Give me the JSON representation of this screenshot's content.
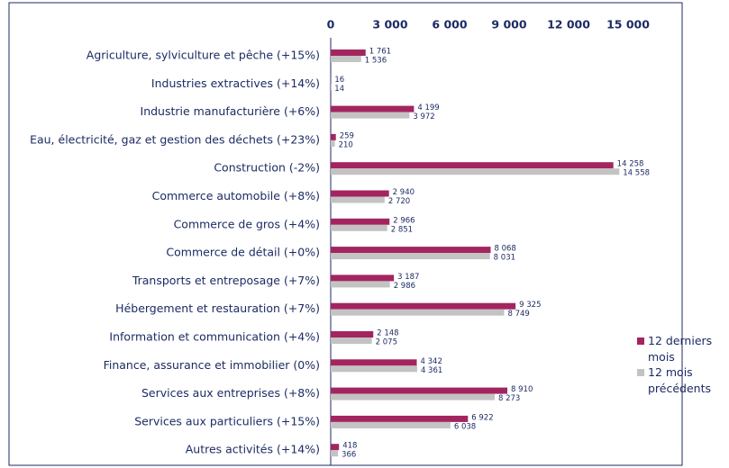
{
  "chart_data": {
    "type": "bar",
    "orientation": "horizontal",
    "categories": [
      "Agriculture, sylviculture et pêche (+15%)",
      "Industries extractives (+14%)",
      "Industrie manufacturière (+6%)",
      "Eau, électricité, gaz et gestion des déchets (+23%)",
      "Construction (-2%)",
      "Commerce automobile (+8%)",
      "Commerce de gros (+4%)",
      "Commerce de détail (+0%)",
      "Transports et entreposage (+7%)",
      "Hébergement et restauration (+7%)",
      "Information et communication (+4%)",
      "Finance, assurance et immobilier (0%)",
      "Services aux entreprises (+8%)",
      "Services aux particuliers (+15%)",
      "Autres activités (+14%)"
    ],
    "series": [
      {
        "name": "12 derniers mois",
        "color": "#a3255f",
        "values": [
          1761,
          16,
          4199,
          259,
          14258,
          2940,
          2966,
          8068,
          3187,
          9325,
          2148,
          4342,
          8910,
          6922,
          418
        ],
        "value_labels": [
          "1 761",
          "16",
          "4 199",
          "259",
          "14 258",
          "2 940",
          "2 966",
          "8 068",
          "3 187",
          "9 325",
          "2 148",
          "4 342",
          "8 910",
          "6 922",
          "418"
        ]
      },
      {
        "name": "12 mois précédents",
        "color": "#c3c3c3",
        "values": [
          1536,
          14,
          3972,
          210,
          14558,
          2720,
          2851,
          8031,
          2986,
          8749,
          2075,
          4361,
          8273,
          6038,
          366
        ],
        "value_labels": [
          "1 536",
          "14",
          "3 972",
          "210",
          "14 558",
          "2 720",
          "2 851",
          "8 031",
          "2 986",
          "8 749",
          "2 075",
          "4 361",
          "8 273",
          "6 038",
          "366"
        ]
      }
    ],
    "xlim": [
      0,
      15000
    ],
    "xticks": [
      0,
      {
        "value": 3000,
        "label": "3 000"
      },
      {
        "value": 6000,
        "label": "6 000"
      },
      {
        "value": 9000,
        "label": "9 000"
      },
      {
        "value": 12000,
        "label": "12 000"
      },
      {
        "value": 15000,
        "label": "15 000"
      }
    ],
    "legend": "right"
  }
}
